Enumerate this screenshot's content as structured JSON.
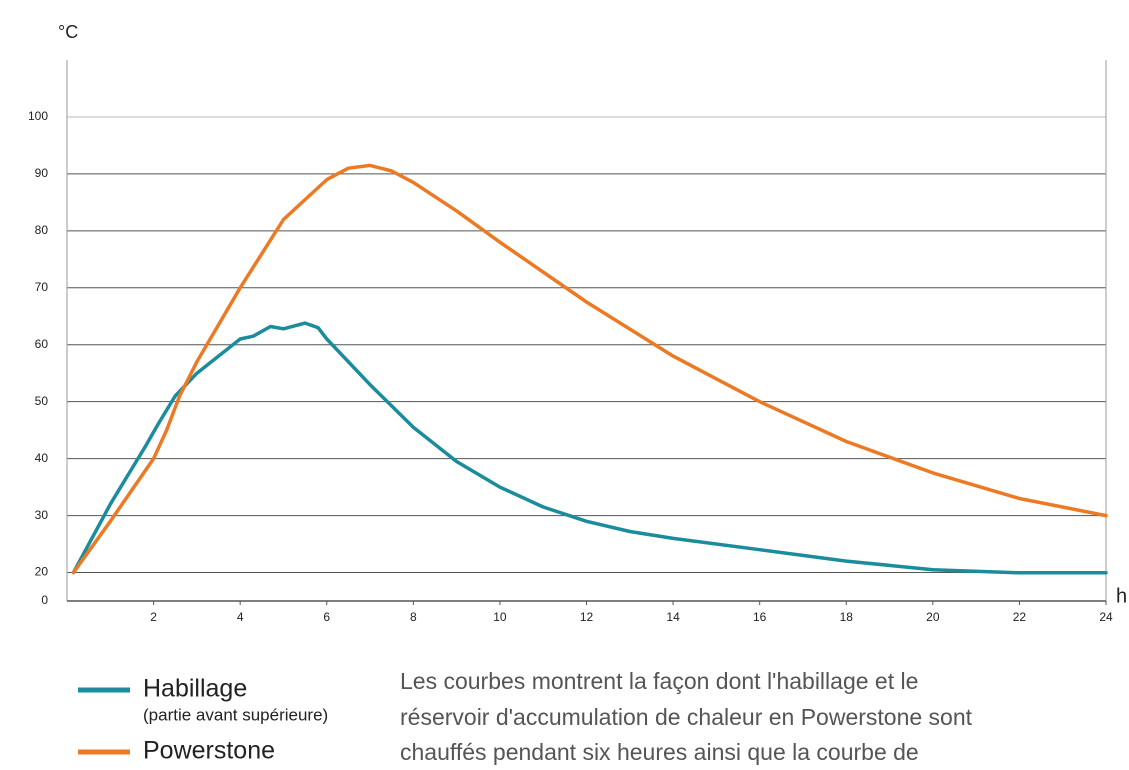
{
  "chart_data": {
    "type": "line",
    "y_label": "°C",
    "x_label": "h",
    "xlim": [
      0,
      24
    ],
    "xticks": [
      2,
      4,
      6,
      8,
      10,
      12,
      14,
      16,
      18,
      20,
      22,
      24
    ],
    "ylim": [
      0,
      110
    ],
    "yticks": [
      0,
      20,
      30,
      40,
      50,
      60,
      70,
      80,
      90,
      100
    ],
    "grid": true,
    "series": [
      {
        "name": "Habillage",
        "subtitle": "(partie avant supérieure)",
        "color": "#1b8c9c",
        "x": [
          0.15,
          1,
          1.8,
          2.1,
          2.5,
          3,
          3.5,
          4,
          4.3,
          4.7,
          5,
          5.5,
          5.8,
          6,
          7,
          8,
          9,
          10,
          11,
          12,
          13,
          14,
          16,
          18,
          20,
          22,
          24
        ],
        "values": [
          20,
          32,
          42,
          46,
          51,
          55,
          58,
          61,
          61.5,
          63.2,
          62.8,
          63.8,
          63,
          61,
          53,
          45.5,
          39.5,
          35,
          31.5,
          29,
          27.2,
          26,
          24,
          22,
          20.5,
          19.8,
          19.8
        ]
      },
      {
        "name": "Powerstone",
        "color": "#ec7a24",
        "x": [
          0.15,
          1,
          2,
          2.3,
          2.6,
          3,
          4,
          5,
          6,
          6.5,
          7,
          7.5,
          8,
          9,
          10,
          12,
          14,
          16,
          18,
          20,
          22,
          24
        ],
        "values": [
          20,
          29,
          40,
          45,
          51,
          57,
          70,
          82,
          89,
          91,
          91.5,
          90.5,
          88.5,
          83.5,
          78,
          67.5,
          58,
          50,
          43,
          37.5,
          33,
          30
        ]
      }
    ],
    "description": [
      "Les courbes montrent la façon dont l'habillage et le",
      "réservoir d'accumulation de chaleur en Powerstone sont",
      "chauffés pendant six heures ainsi que la courbe de"
    ]
  }
}
